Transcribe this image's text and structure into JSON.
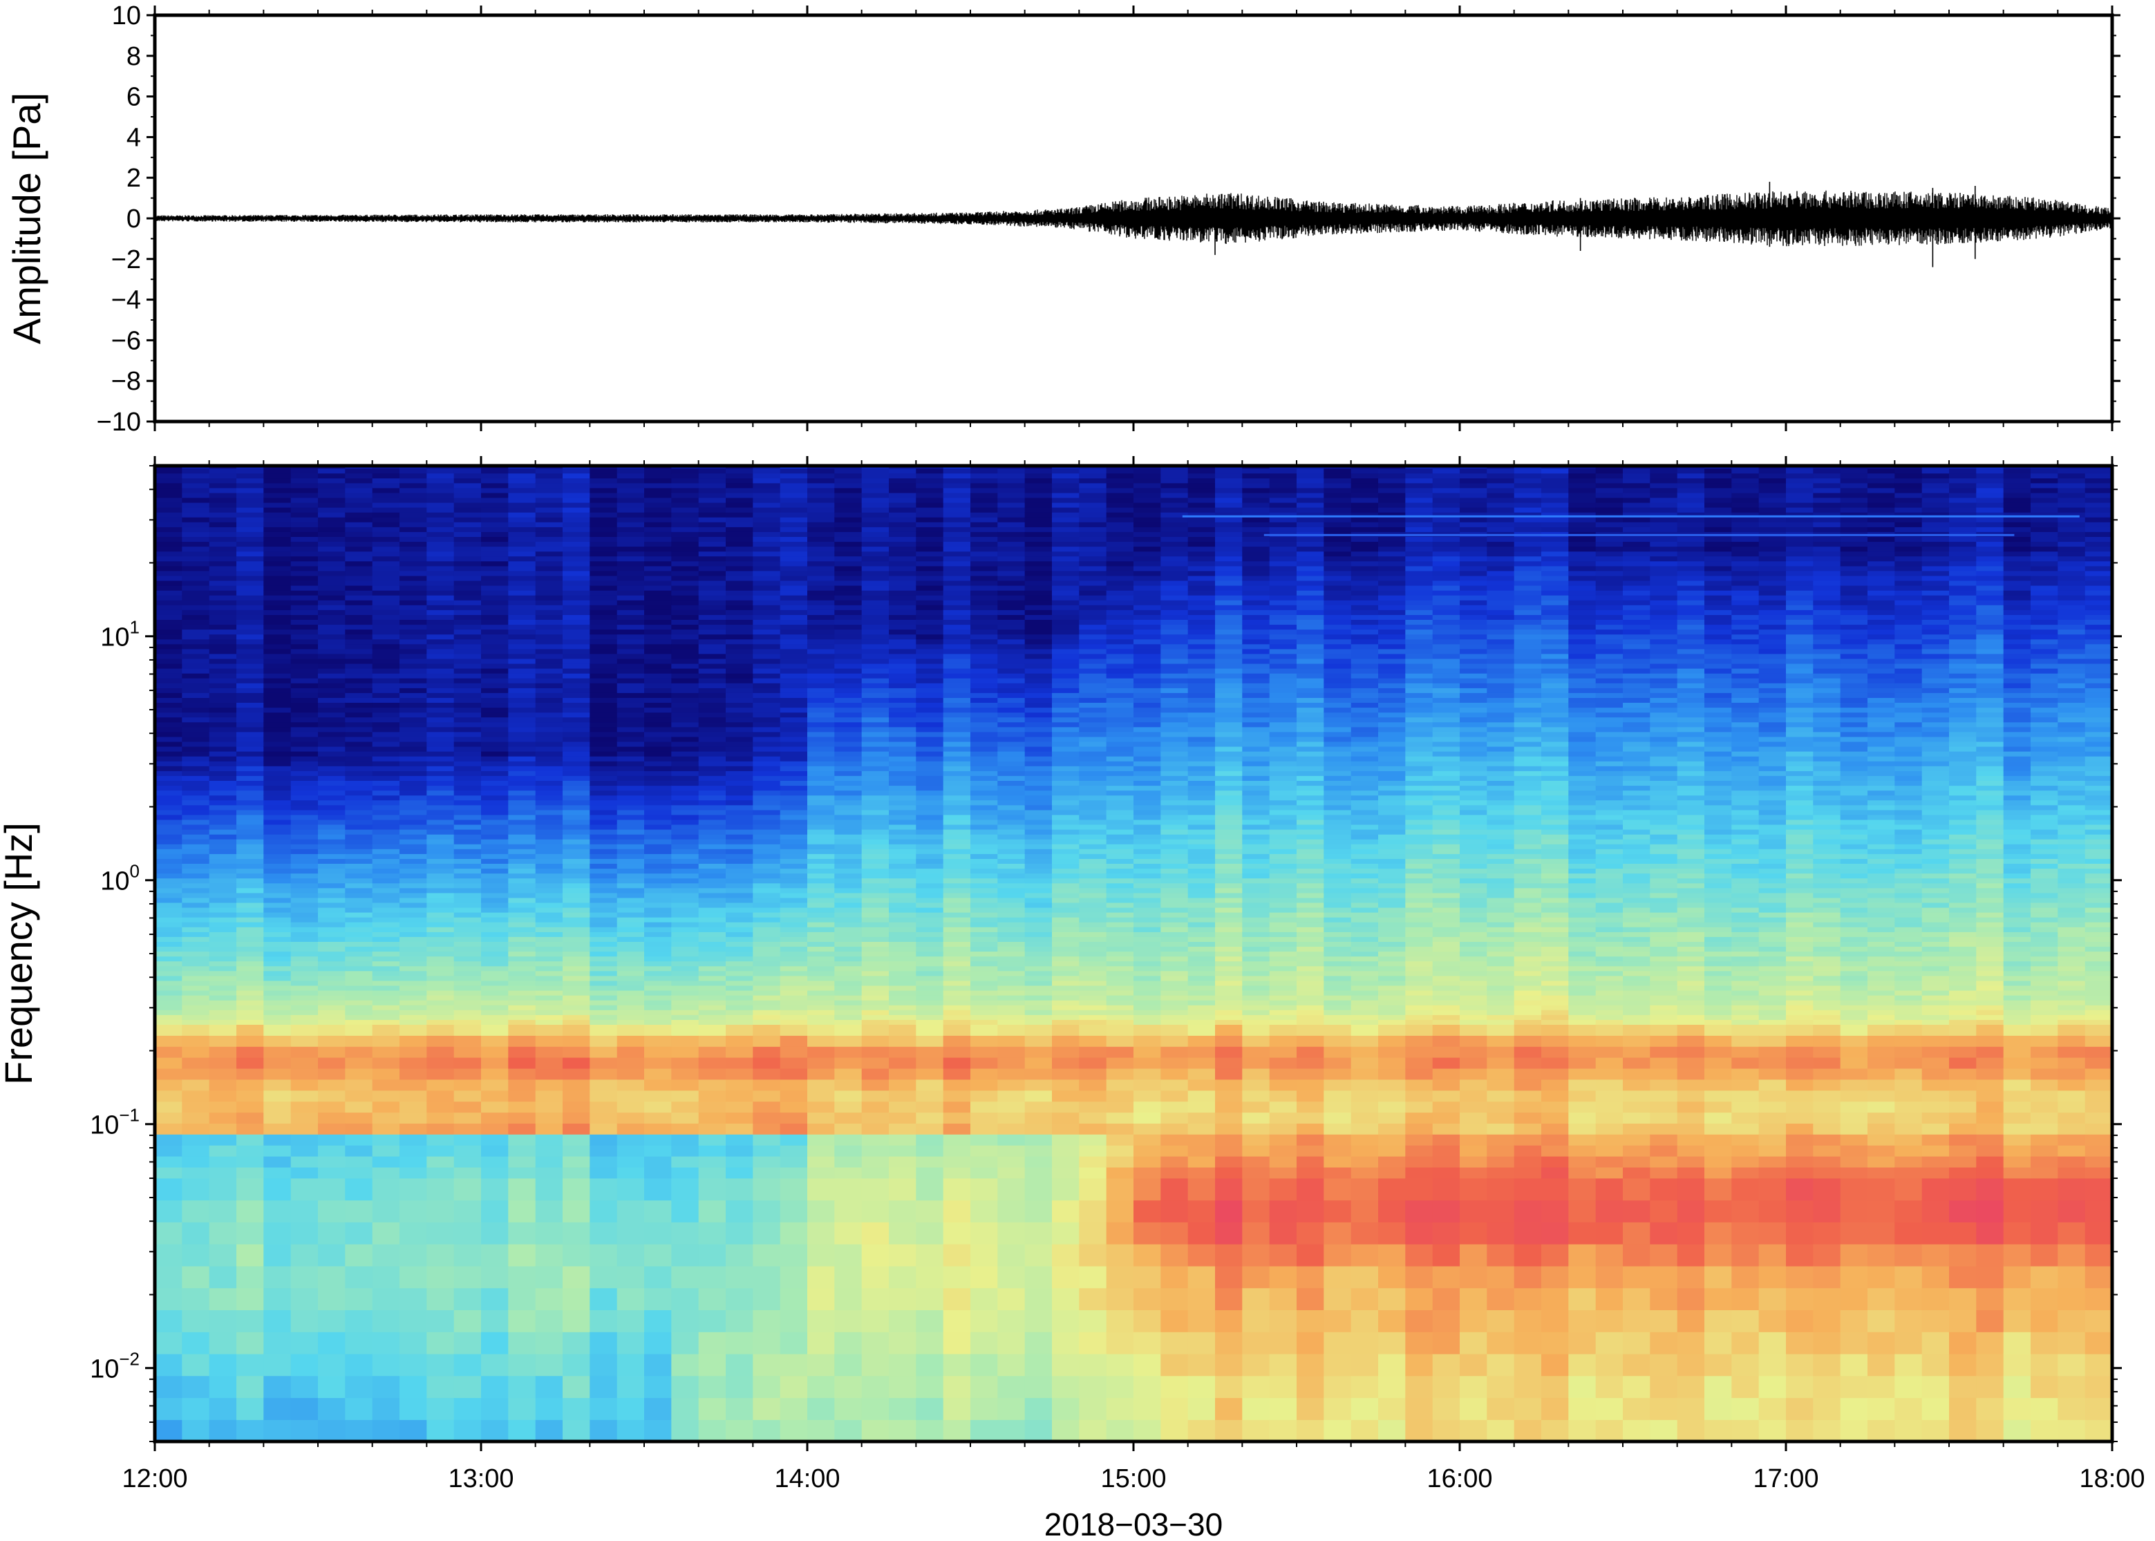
{
  "chart_data": [
    {
      "type": "line",
      "ylabel": "Amplitude [Pa]",
      "ylim": [
        -10,
        10
      ],
      "yticks": [
        10,
        8,
        6,
        4,
        2,
        0,
        -2,
        -4,
        -6,
        -8,
        -10
      ],
      "y_tick_labels": [
        "10",
        "8",
        "6",
        "4",
        "2",
        "0",
        "−2",
        "−4",
        "−6",
        "−8",
        "−10"
      ],
      "x_range": [
        "12:00",
        "18:00"
      ],
      "grid": false,
      "series": [
        {
          "color": "#000000",
          "envelope_time_hours": [
            12.0,
            13.0,
            14.0,
            14.5,
            14.8,
            15.0,
            15.3,
            15.6,
            16.0,
            16.3,
            16.7,
            17.0,
            17.5,
            17.8,
            18.0
          ],
          "envelope_amplitude_pa": [
            0.15,
            0.2,
            0.2,
            0.3,
            0.5,
            1.0,
            1.3,
            0.8,
            0.6,
            0.9,
            1.1,
            1.4,
            1.3,
            1.0,
            0.5
          ],
          "peaks": [
            {
              "time_hours": 15.25,
              "min_pa": -1.8,
              "max_pa": 1.0
            },
            {
              "time_hours": 16.37,
              "min_pa": -1.6,
              "max_pa": 1.0
            },
            {
              "time_hours": 16.95,
              "min_pa": -1.4,
              "max_pa": 1.8
            },
            {
              "time_hours": 17.45,
              "min_pa": -2.4,
              "max_pa": 1.5
            },
            {
              "time_hours": 17.58,
              "min_pa": -2.0,
              "max_pa": 1.6
            }
          ]
        }
      ]
    },
    {
      "type": "heatmap",
      "ylabel": "Frequency [Hz]",
      "xlabel": "2018−03−30",
      "y_scale": "log",
      "ylim": [
        0.005,
        50
      ],
      "yticks": [
        {
          "value": 0.01,
          "base": "10",
          "exp": "−2"
        },
        {
          "value": 0.1,
          "base": "10",
          "exp": "−1"
        },
        {
          "value": 1,
          "base": "10",
          "exp": "0"
        },
        {
          "value": 10,
          "base": "10",
          "exp": "1"
        }
      ],
      "x_ticks": [
        "12:00",
        "13:00",
        "14:00",
        "15:00",
        "16:00",
        "17:00",
        "18:00"
      ],
      "x_ticks_hours": [
        12,
        13,
        14,
        15,
        16,
        17,
        18
      ],
      "colormap": "jet",
      "colormap_stops": [
        "#0b0873",
        "#1234d8",
        "#2d8ef0",
        "#55d6ee",
        "#a8eab4",
        "#eaf08c",
        "#f6b05a",
        "#f0604c",
        "#e8406a"
      ],
      "line_features": [
        {
          "frequency_hz": 31,
          "start_hours": 15.15,
          "end_hours": 17.9,
          "color": "#2e7cff"
        },
        {
          "frequency_hz": 26,
          "start_hours": 15.4,
          "end_hours": 17.7,
          "color": "#2a63f0"
        }
      ],
      "grid": false
    }
  ]
}
